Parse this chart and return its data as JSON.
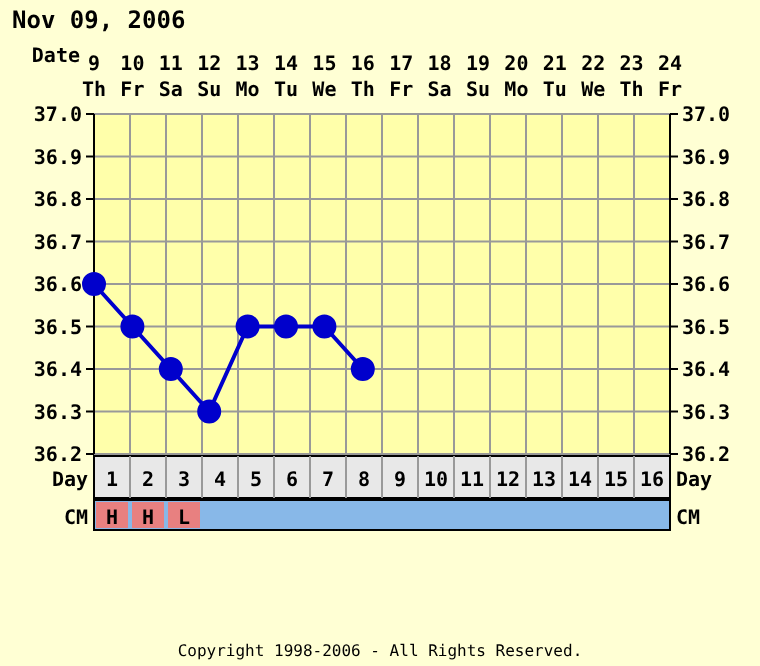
{
  "chart_data": {
    "type": "line",
    "title": "Nov 09, 2006",
    "xlabel": "Date",
    "x2label": "Day",
    "categories": [
      "9 Th",
      "10 Fr",
      "11 Sa",
      "12 Su",
      "13 Mo",
      "14 Tu",
      "15 We",
      "16 Th",
      "17 Fr",
      "18 Sa",
      "19 Su",
      "20 Mo",
      "21 Tu",
      "22 We",
      "23 Th",
      "24 Fr"
    ],
    "series": [
      {
        "color": "#0000cc",
        "values": [
          36.6,
          36.5,
          36.4,
          36.3,
          36.5,
          36.5,
          36.5,
          36.4,
          null,
          null,
          null,
          null,
          null,
          null,
          null,
          null
        ]
      }
    ],
    "ylim": [
      36.2,
      37.0
    ],
    "yticks": [
      36.2,
      36.3,
      36.4,
      36.5,
      36.6,
      36.7,
      36.8,
      36.9,
      {
        "value": 37,
        "label": "37.0"
      }
    ],
    "y2lim": [
      36.2,
      37.0
    ],
    "y2ticks": [
      36.2,
      36.3,
      36.4,
      36.5,
      36.6,
      36.7,
      36.8,
      36.9,
      {
        "value": 37,
        "label": "37.0"
      }
    ],
    "x2lim": [
      0.5,
      16.5
    ],
    "x2ticks": [
      1,
      2,
      3,
      4,
      5,
      6,
      7,
      8,
      9,
      10,
      11,
      12,
      13,
      14,
      15,
      16
    ],
    "grid": true,
    "marker": "circle",
    "line_style": "solid",
    "legend": false,
    "annotations": [
      "CM",
      "Copyright 1998-2006 - All Rights Reserved.",
      "H",
      "H",
      "L"
    ]
  }
}
